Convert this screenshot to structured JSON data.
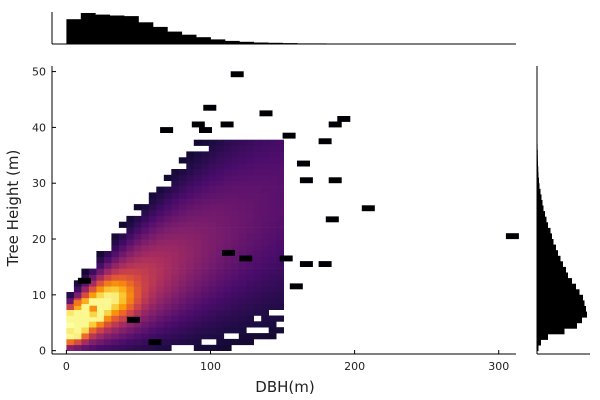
{
  "chart_data": [
    {
      "type": "heatmap",
      "panel": "main",
      "xlabel": "DBH(m)",
      "ylabel": "Tree Height (m)",
      "xlim": [
        -10,
        312
      ],
      "ylim": [
        -0.6,
        51
      ],
      "x_ticks": [
        0,
        100,
        200,
        300
      ],
      "y_ticks": [
        0,
        10,
        20,
        30,
        40,
        50
      ],
      "x_tick_labels": [
        "0",
        "100",
        "200",
        "300"
      ],
      "y_tick_labels": [
        "0",
        "10",
        "20",
        "30",
        "40",
        "50"
      ],
      "grid": false,
      "bin_width_x": 5.2,
      "bin_height_y": 1.05,
      "colormap": "inferno",
      "colormap_stops": [
        "#000004",
        "#1b0c41",
        "#4a0c6b",
        "#781c6d",
        "#a52c60",
        "#cf4446",
        "#ed6925",
        "#fb9b06",
        "#f7d13d",
        "#fcffa4"
      ],
      "density_model_note": "visible density pattern",
      "core_ridge": [
        {
          "x": 0,
          "y": 4.5
        },
        {
          "x": 20,
          "y": 8
        },
        {
          "x": 50,
          "y": 12
        },
        {
          "x": 80,
          "y": 17
        },
        {
          "x": 110,
          "y": 20
        },
        {
          "x": 140,
          "y": 24
        }
      ],
      "hotspots": [
        {
          "x": 0,
          "y": 4,
          "value": 1.0
        },
        {
          "x": 0,
          "y": 3,
          "value": 0.95
        },
        {
          "x": 16,
          "y": 6,
          "value": 0.9
        },
        {
          "x": 16,
          "y": 7,
          "value": 0.75
        },
        {
          "x": 5,
          "y": 8,
          "value": 0.7
        }
      ],
      "outliers": [
        {
          "x": 114,
          "y": 49
        },
        {
          "x": 95,
          "y": 43
        },
        {
          "x": 134,
          "y": 42
        },
        {
          "x": 188,
          "y": 41
        },
        {
          "x": 182,
          "y": 40
        },
        {
          "x": 65,
          "y": 39
        },
        {
          "x": 87,
          "y": 40
        },
        {
          "x": 92,
          "y": 39
        },
        {
          "x": 107,
          "y": 40
        },
        {
          "x": 150,
          "y": 38
        },
        {
          "x": 175,
          "y": 37
        },
        {
          "x": 160,
          "y": 33
        },
        {
          "x": 162,
          "y": 30
        },
        {
          "x": 182,
          "y": 30
        },
        {
          "x": 205,
          "y": 25
        },
        {
          "x": 180,
          "y": 23
        },
        {
          "x": 305,
          "y": 20
        },
        {
          "x": 162,
          "y": 15
        },
        {
          "x": 175,
          "y": 15
        },
        {
          "x": 155,
          "y": 11
        },
        {
          "x": 57,
          "y": 1
        },
        {
          "x": 42,
          "y": 5
        },
        {
          "x": 8,
          "y": 12
        },
        {
          "x": 108,
          "y": 17
        },
        {
          "x": 120,
          "y": 16
        },
        {
          "x": 148,
          "y": 16
        }
      ]
    },
    {
      "type": "bar",
      "panel": "top-marginal",
      "orientation": "vertical",
      "description_values_are_relative_heights": true,
      "x_bin_starts": [
        0,
        10,
        20,
        30,
        40,
        50,
        60,
        70,
        80,
        90,
        100,
        110,
        120,
        130,
        140,
        150,
        160,
        170,
        180,
        190,
        200,
        220,
        240,
        260,
        280,
        300
      ],
      "values": [
        0.8,
        1.0,
        0.95,
        0.92,
        0.9,
        0.7,
        0.55,
        0.4,
        0.3,
        0.22,
        0.15,
        0.1,
        0.07,
        0.05,
        0.04,
        0.03,
        0.02,
        0.02,
        0.015,
        0.01,
        0.01,
        0.008,
        0.006,
        0.004,
        0.003,
        0.003
      ]
    },
    {
      "type": "bar",
      "panel": "right-marginal",
      "orientation": "horizontal",
      "description_values_are_relative_lengths": true,
      "y_bin_starts": [
        0,
        1,
        2,
        3,
        4,
        5,
        6,
        7,
        8,
        9,
        10,
        11,
        12,
        13,
        14,
        15,
        16,
        17,
        18,
        19,
        20,
        21,
        22,
        23,
        24,
        25,
        26,
        27,
        28,
        29,
        30,
        31,
        32,
        33,
        34,
        35,
        36,
        37,
        38,
        39,
        40,
        41,
        42,
        43,
        44,
        45,
        46,
        47,
        48,
        49
      ],
      "values": [
        0.03,
        0.08,
        0.22,
        0.55,
        0.8,
        0.9,
        1.0,
        0.98,
        0.95,
        0.92,
        0.85,
        0.78,
        0.7,
        0.62,
        0.58,
        0.52,
        0.47,
        0.42,
        0.38,
        0.33,
        0.3,
        0.27,
        0.22,
        0.19,
        0.16,
        0.13,
        0.11,
        0.09,
        0.07,
        0.05,
        0.04,
        0.03,
        0.025,
        0.02,
        0.018,
        0.015,
        0.012,
        0.01,
        0.008,
        0.006,
        0.005,
        0.004,
        0.003,
        0.003,
        0.002,
        0.002,
        0.002,
        0.001,
        0.001,
        0.001
      ]
    }
  ]
}
